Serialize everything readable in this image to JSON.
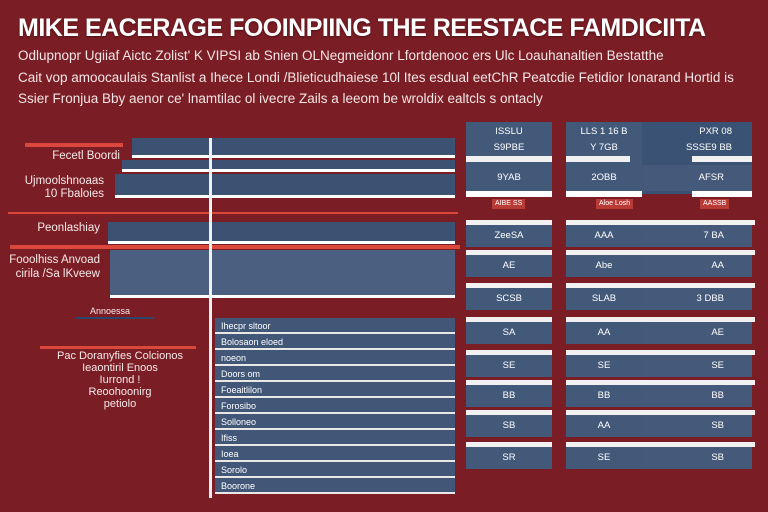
{
  "header": {
    "title": "MIKE EACERAGE FOOINPIING THE REESTACE FAMDICIITA",
    "subtitle_lines": [
      "Odlupnopr Ugiiaf Aictc Zolist' K VIPSI ab Snien OLNegmeidonr Lfortdenooc ers Ulc Loauhanaltien Bestatthe",
      "Cait vop amoocaulais Stanlist a Ihece Londi /Blieticudhaiese 10l Ites esdual eetChR Peatcdie Fetidior Ionarand Hortid is",
      "Ssier Fronjua Bby aenor ce' lnamtilac ol ivecre Zails a leeom be wroldix ealtcls s ontacly"
    ]
  },
  "left_labels": {
    "l1": "Fecetl Boordi",
    "l2a": "Ujmoolshnoaas",
    "l2b": "10 Fbaloies",
    "l3": "Peonlashiay",
    "l4a": "Fooolhiss Anvoad",
    "l4b": "cirila /Sa lKveew",
    "l5": "Annoessa",
    "l6": [
      "Pac Doranyfies Colcionos",
      "Ieaontiril Enoos",
      "Iurrond !",
      "Reoohoonirg",
      "petiolo"
    ]
  },
  "center_table": {
    "rows": [
      "Ihecpr sltoor",
      "Bolosaon eloed",
      "noeon",
      "Doors om",
      "Foeaitlilon",
      "Forosibo",
      "Solloneo",
      "Ifiss",
      "Ioea",
      "Sorolo",
      "Boorone"
    ]
  },
  "right_table": {
    "headers": [
      "ISSLU",
      "LLS 1 16 B",
      "PXR 08"
    ],
    "subheaders": [
      "S9PBE",
      "Y 7GB",
      "SSSE9 BB"
    ],
    "rows": [
      [
        "9YAB",
        "2OBB",
        "AFSR"
      ],
      [
        "ZeeSA",
        "AAA",
        "7 BA"
      ],
      [
        "AE",
        "Abe",
        "AA"
      ],
      [
        "SCSB",
        "SLAB",
        "3 DBB"
      ],
      [
        "SA",
        "AA",
        "AE"
      ],
      [
        "SE",
        "SE",
        "SE"
      ],
      [
        "BB",
        "BB",
        "BB"
      ],
      [
        "SB",
        "AA",
        "SB"
      ],
      [
        "SR",
        "SE",
        "SB"
      ]
    ],
    "tags": [
      "AIBE SS",
      "Aloe Losh",
      "AASSB"
    ]
  },
  "colors": {
    "background": "#7b1d24",
    "panel": "#43597a",
    "accent": "#d9483b"
  }
}
